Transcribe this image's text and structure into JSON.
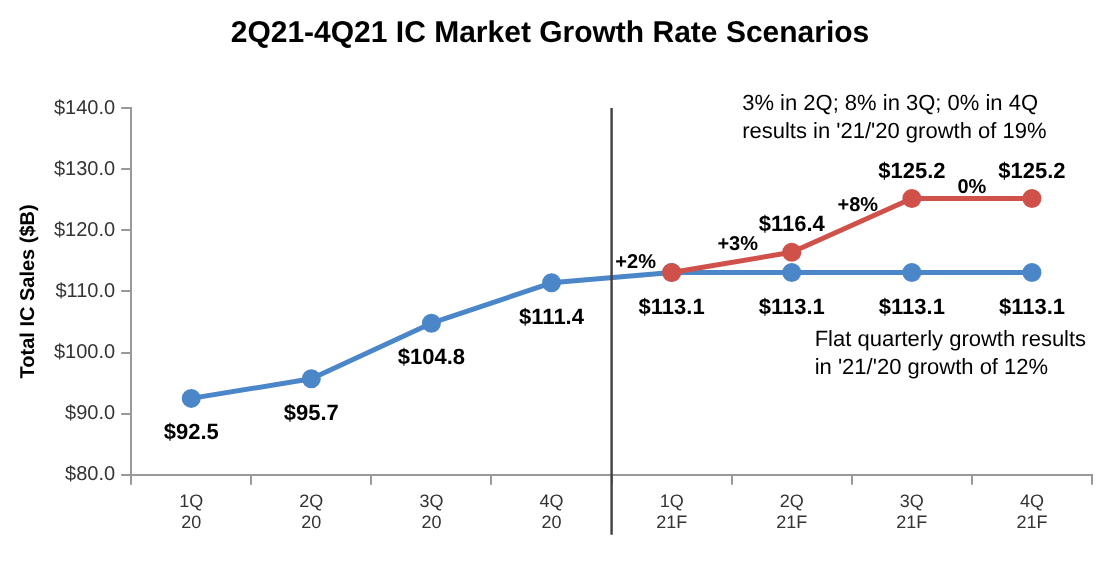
{
  "chart_data": {
    "type": "line",
    "title": "2Q21-4Q21 IC Market Growth Rate Scenarios",
    "ylabel": "Total IC Sales ($B)",
    "categories": [
      "1Q\n20",
      "2Q\n20",
      "3Q\n20",
      "4Q\n20",
      "1Q\n21F",
      "2Q\n21F",
      "3Q\n21F",
      "4Q\n21F"
    ],
    "series": [
      {
        "color": "#4a86c8",
        "values": [
          92.5,
          95.7,
          104.8,
          111.4,
          113.1,
          113.1,
          113.1,
          113.1
        ],
        "value_labels": [
          "$92.5",
          "$95.7",
          "$104.8",
          "$111.4",
          "$113.1",
          "$113.1",
          "$113.1",
          "$113.1"
        ]
      },
      {
        "color": "#d0504a",
        "values": [
          null,
          null,
          null,
          null,
          113.1,
          116.4,
          125.2,
          125.2
        ],
        "value_labels": [
          null,
          null,
          null,
          null,
          null,
          "$116.4",
          "$125.2",
          "$125.2"
        ]
      }
    ],
    "ylim": [
      80,
      140
    ],
    "yticks": [
      {
        "value": 80,
        "label": "$80.0"
      },
      {
        "value": 90,
        "label": "$90.0"
      },
      {
        "value": 100,
        "label": "$100.0"
      },
      {
        "value": 110,
        "label": "$110.0"
      },
      {
        "value": 120,
        "label": "$120.0"
      },
      {
        "value": 130,
        "label": "$130.0"
      },
      {
        "value": 140,
        "label": "$140.0"
      }
    ],
    "annotations": [
      "3% in 2Q; 8% in 3Q; 0% in 4Q\nresults in '21/'20 growth of 19%",
      "Flat quarterly growth results\nin '21/'20 growth of 12%",
      "+2%",
      "+3%",
      "+8%",
      "0%"
    ],
    "marker": "circle",
    "line_style": "solid",
    "grid": false,
    "legend": false
  }
}
